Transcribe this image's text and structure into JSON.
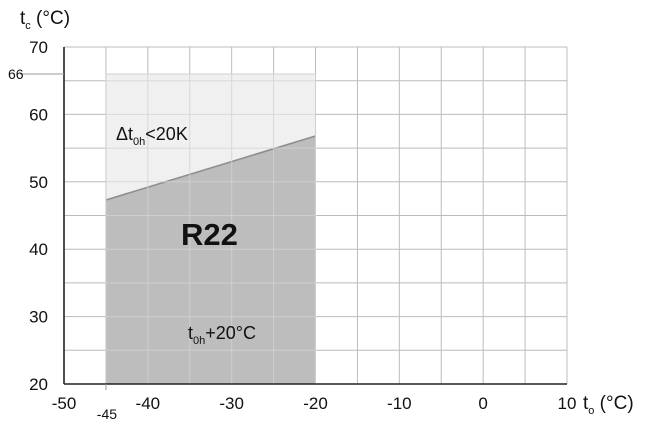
{
  "chart_data": {
    "type": "area",
    "x_axis": {
      "label_main": "t",
      "label_sub": "o",
      "label_unit": " (°C)",
      "range": [
        -50,
        10
      ],
      "ticks": [
        -50,
        -40,
        -30,
        -20,
        -10,
        0,
        10
      ],
      "tick_labels": [
        "-50",
        "-40",
        "-30",
        "-20",
        "-10",
        "0",
        "10"
      ],
      "special_tick": -45,
      "special_tick_label": "-45"
    },
    "y_axis": {
      "label_main": "t",
      "label_sub": "c",
      "label_unit": " (°C)",
      "range": [
        20,
        70
      ],
      "ticks": [
        20,
        30,
        40,
        50,
        60,
        70
      ],
      "tick_labels": [
        "20",
        "30",
        "40",
        "50",
        "60",
        "70"
      ],
      "special_tick": 66,
      "special_tick_label": "66"
    },
    "grid": true,
    "grid_x_step": 5,
    "grid_y_step": 5,
    "envelope": {
      "x": [
        -45,
        -20
      ],
      "y_bottom": 20,
      "y_top": 66,
      "boundary_line": {
        "x": [
          -45,
          -20
        ],
        "y": [
          47.3,
          56.8
        ]
      }
    },
    "annotations": {
      "upper": {
        "prefix": "Δt",
        "sub": "0h",
        "suffix": "<20K"
      },
      "lower": {
        "prefix": "t",
        "sub": "0h",
        "suffix": "+20°C"
      },
      "region_label": "R22"
    },
    "colors": {
      "upper_fill": "#f0f0f0",
      "lower_fill": "#bdbdbd",
      "boundary": "#8e8e8e",
      "grid": "#bcbcbc",
      "axis": "#222222"
    }
  }
}
